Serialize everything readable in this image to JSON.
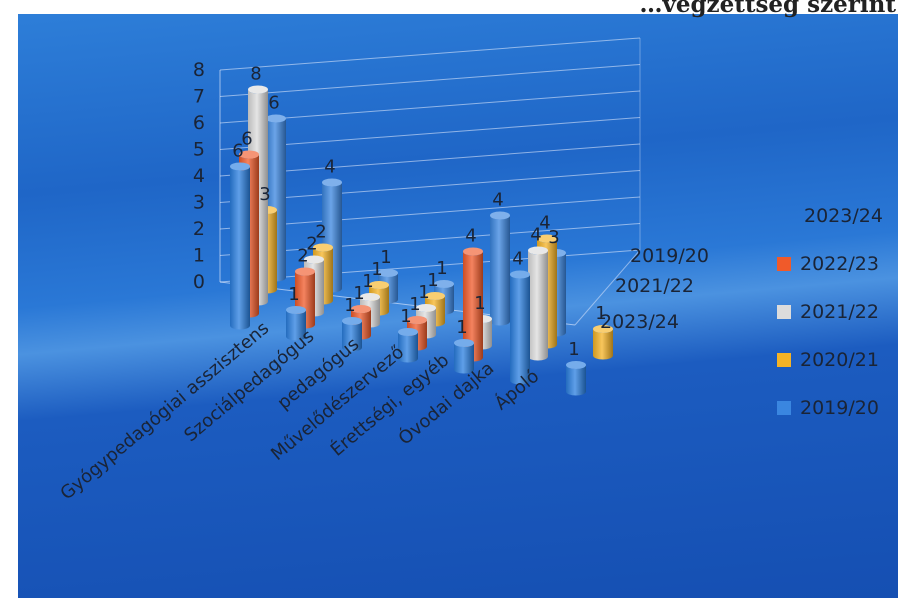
{
  "page_title": "…végzettség szerint",
  "chart_data": {
    "type": "bar",
    "subtype": "3d-column-depth",
    "categories": [
      "Gyógypedagógiai asszisztens",
      "Szociálpedagógus",
      "pedagógus",
      "Művelődészervező",
      "Érettségi, egyéb",
      "Óvodai dajka",
      "Ápoló"
    ],
    "series": [
      {
        "name": "2019/20",
        "values": [
          6,
          4,
          1,
          1,
          4,
          3,
          0
        ],
        "color": "#3a86e0"
      },
      {
        "name": "2020/21",
        "values": [
          3,
          2,
          1,
          1,
          0,
          4,
          1
        ],
        "color": "#f5b325"
      },
      {
        "name": "2021/22",
        "values": [
          8,
          2,
          1,
          1,
          1,
          4,
          0
        ],
        "color": "#dcdcdc"
      },
      {
        "name": "2022/23",
        "values": [
          6,
          2,
          1,
          1,
          4,
          0,
          0
        ],
        "color": "#f05a2a"
      },
      {
        "name": "2023/24",
        "values": [
          6,
          1,
          1,
          1,
          1,
          4,
          1
        ],
        "color": "#2a7fe0"
      }
    ],
    "depth_axis_labels": [
      "2019/20",
      "2021/22",
      "2023/24"
    ],
    "legend_entries": [
      "2023/24",
      "2022/23",
      "2021/22",
      "2020/21",
      "2019/20"
    ],
    "legend_placement": "right",
    "ylim": [
      0,
      8
    ],
    "yticks": [
      0,
      1,
      2,
      3,
      4,
      5,
      6,
      7,
      8
    ],
    "grid": true
  }
}
